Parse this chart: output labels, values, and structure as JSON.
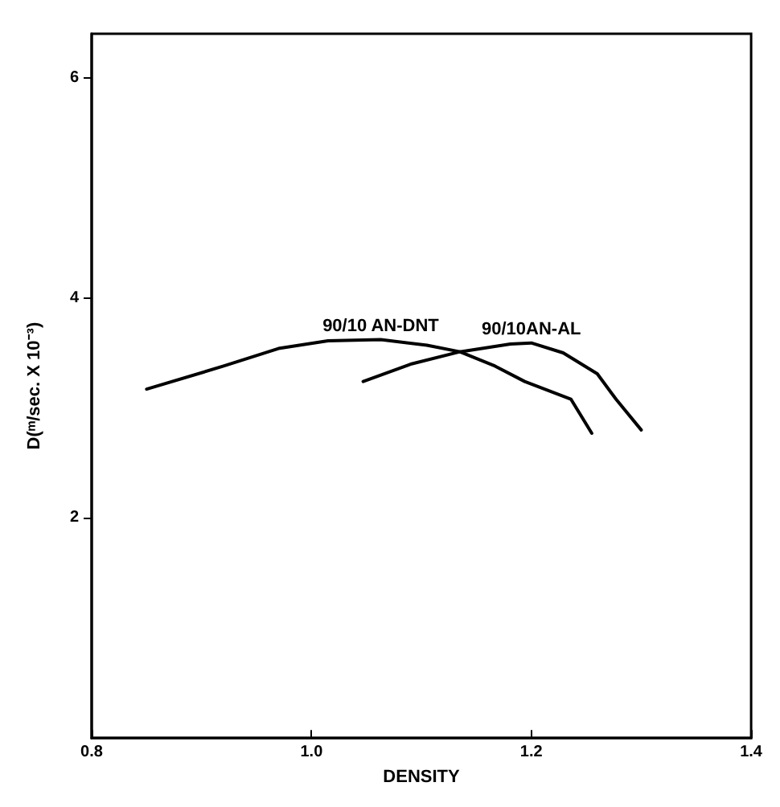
{
  "chart_data": {
    "type": "line",
    "xlabel": "DENSITY",
    "ylabel": "D(ᵐ/sec. X 10⁻³)",
    "xlim": [
      0.8,
      1.4
    ],
    "xticks": [
      {
        "value": 0.8,
        "label": "0.8"
      },
      {
        "value": 1.0,
        "label": "1.0"
      },
      {
        "value": 1.2,
        "label": "1.2"
      },
      {
        "value": 1.4,
        "label": "1.4"
      }
    ],
    "ylim": [
      0,
      6.4
    ],
    "yticks": [
      2,
      4,
      6
    ],
    "grid": false,
    "marker": "none",
    "line_style": "solid",
    "series": [
      {
        "name": "90/10 AN-DNT",
        "color": "#000000",
        "x": [
          0.85,
          0.92,
          0.97,
          1.015,
          1.063,
          1.105,
          1.135,
          1.167,
          1.194,
          1.236,
          1.255
        ],
        "values": [
          3.17,
          3.38,
          3.54,
          3.61,
          3.62,
          3.57,
          3.51,
          3.38,
          3.24,
          3.08,
          2.77
        ]
      },
      {
        "name": "90/10AN-AL",
        "color": "#000000",
        "x": [
          1.047,
          1.091,
          1.135,
          1.181,
          1.2,
          1.229,
          1.26,
          1.277,
          1.3
        ],
        "values": [
          3.24,
          3.4,
          3.51,
          3.58,
          3.59,
          3.5,
          3.31,
          3.08,
          2.8
        ]
      }
    ]
  }
}
